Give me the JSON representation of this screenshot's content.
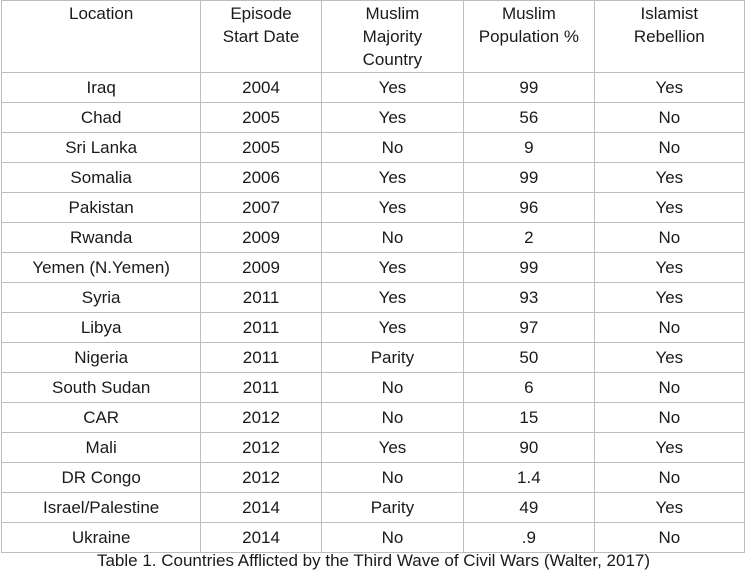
{
  "table": {
    "headers": [
      [
        "Location"
      ],
      [
        "Episode",
        "Start Date"
      ],
      [
        "Muslim",
        "Majority",
        "Country"
      ],
      [
        "Muslim",
        "Population %"
      ],
      [
        "Islamist",
        "Rebellion"
      ]
    ],
    "rows": [
      [
        "Iraq",
        "2004",
        "Yes",
        "99",
        "Yes"
      ],
      [
        "Chad",
        "2005",
        "Yes",
        "56",
        "No"
      ],
      [
        "Sri Lanka",
        "2005",
        "No",
        "9",
        "No"
      ],
      [
        "Somalia",
        "2006",
        "Yes",
        "99",
        "Yes"
      ],
      [
        "Pakistan",
        "2007",
        "Yes",
        "96",
        "Yes"
      ],
      [
        "Rwanda",
        "2009",
        "No",
        "2",
        "No"
      ],
      [
        "Yemen (N.Yemen)",
        "2009",
        "Yes",
        "99",
        "Yes"
      ],
      [
        "Syria",
        "2011",
        "Yes",
        "93",
        "Yes"
      ],
      [
        "Libya",
        "2011",
        "Yes",
        "97",
        "No"
      ],
      [
        "Nigeria",
        "2011",
        "Parity",
        "50",
        "Yes"
      ],
      [
        "South Sudan",
        "2011",
        "No",
        "6",
        "No"
      ],
      [
        "CAR",
        "2012",
        "No",
        "15",
        "No"
      ],
      [
        "Mali",
        "2012",
        "Yes",
        "90",
        "Yes"
      ],
      [
        "DR Congo",
        "2012",
        "No",
        "1.4",
        "No"
      ],
      [
        "Israel/Palestine",
        "2014",
        "Parity",
        "49",
        "Yes"
      ],
      [
        "Ukraine",
        "2014",
        "No",
        ".9",
        "No"
      ]
    ]
  },
  "caption": "Table 1. Countries Afflicted by the Third Wave of Civil Wars (Walter, 2017)"
}
